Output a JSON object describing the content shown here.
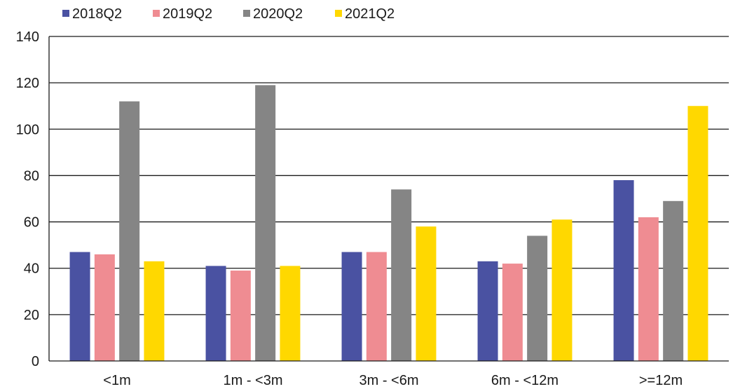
{
  "chart_data": {
    "type": "bar",
    "title": "",
    "xlabel": "",
    "ylabel": "",
    "categories": [
      "<1m",
      "1m - <3m",
      "3m - <6m",
      "6m - <12m",
      ">=12m"
    ],
    "series": [
      {
        "name": "2018Q2",
        "color": "#4a52a2",
        "values": [
          47,
          41,
          47,
          43,
          78
        ]
      },
      {
        "name": "2019Q2",
        "color": "#ef8c92",
        "values": [
          46,
          39,
          47,
          42,
          62
        ]
      },
      {
        "name": "2020Q2",
        "color": "#858585",
        "values": [
          112,
          119,
          74,
          54,
          69
        ]
      },
      {
        "name": "2021Q2",
        "color": "#ffd800",
        "values": [
          43,
          41,
          58,
          61,
          110
        ]
      }
    ],
    "ylim": [
      0,
      140
    ],
    "yticks": [
      0,
      20,
      40,
      60,
      80,
      100,
      120,
      140
    ],
    "grid": true,
    "legend": "top-left"
  }
}
